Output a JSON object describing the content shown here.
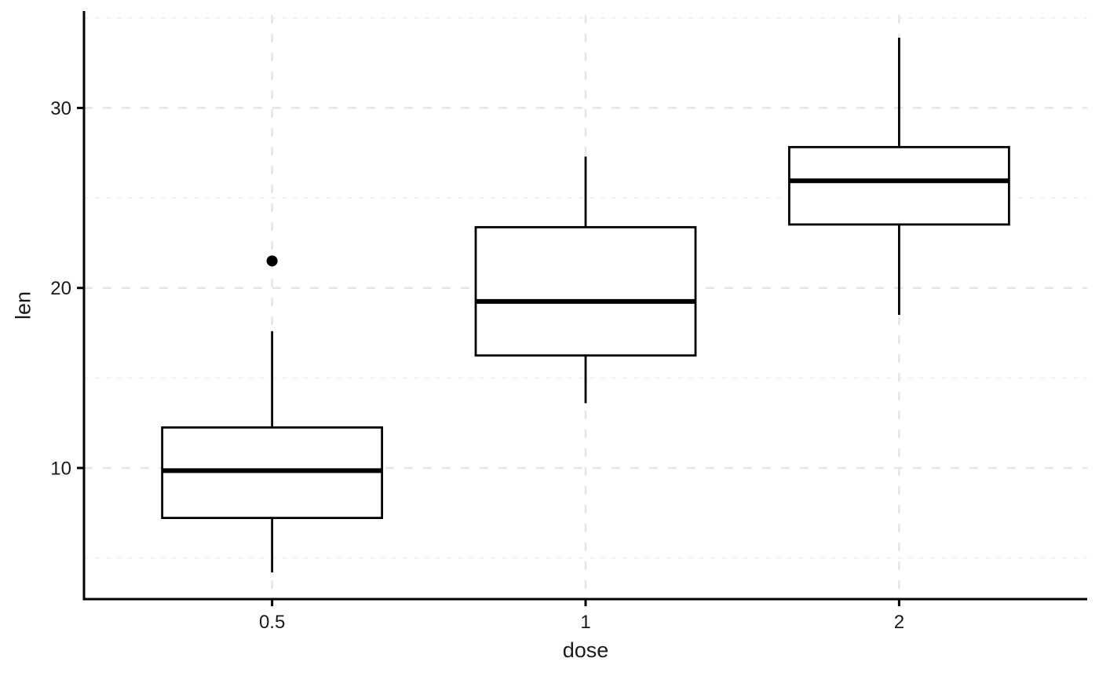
{
  "chart_data": {
    "type": "boxplot",
    "title": "",
    "xlabel": "dose",
    "ylabel": "len",
    "categories": [
      "0.5",
      "1",
      "2"
    ],
    "series": [
      {
        "category": "0.5",
        "whisker_low": 4.2,
        "q1": 7.225,
        "median": 9.85,
        "q3": 12.25,
        "whisker_high": 17.6,
        "outliers": [
          21.5
        ]
      },
      {
        "category": "1",
        "whisker_low": 13.6,
        "q1": 16.25,
        "median": 19.25,
        "q3": 23.375,
        "whisker_high": 27.3,
        "outliers": []
      },
      {
        "category": "2",
        "whisker_low": 18.5,
        "q1": 23.525,
        "median": 25.95,
        "q3": 27.825,
        "whisker_high": 33.9,
        "outliers": []
      }
    ],
    "y_axis": {
      "ticks": [
        10,
        20,
        30
      ],
      "minor_gridlines": [
        5,
        15,
        25,
        35
      ],
      "range": [
        2.715,
        35.385
      ]
    },
    "x_axis": {
      "ticks": [
        "0.5",
        "1",
        "2"
      ]
    },
    "legend": "none",
    "grid": {
      "horizontal_major": "dashed",
      "horizontal_minor": "dashed",
      "vertical_major": "dashed",
      "vertical_minor": "none"
    },
    "colors": {
      "stroke": "#000000",
      "box_fill": "#ffffff",
      "grid_major": "#e6e6e6",
      "grid_minor": "#efefef",
      "text": "#1a1a1a",
      "background": "#ffffff"
    }
  }
}
